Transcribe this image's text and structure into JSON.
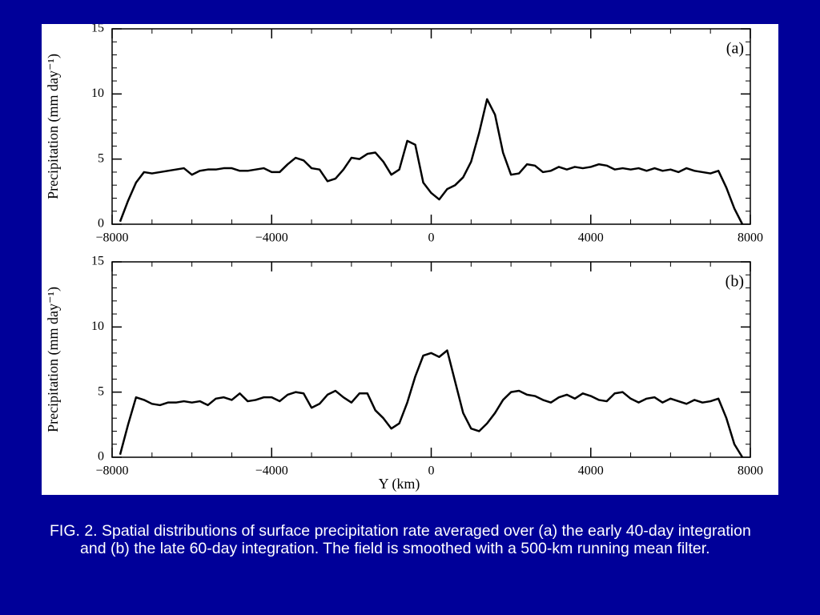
{
  "chart_data": [
    {
      "type": "line",
      "annotation": "(a)",
      "ylabel": "Precipitation (mm day⁻¹)",
      "x": [
        -7800,
        -7600,
        -7400,
        -7200,
        -7000,
        -6800,
        -6600,
        -6400,
        -6200,
        -6000,
        -5800,
        -5600,
        -5400,
        -5200,
        -5000,
        -4800,
        -4600,
        -4400,
        -4200,
        -4000,
        -3800,
        -3600,
        -3400,
        -3200,
        -3000,
        -2800,
        -2600,
        -2400,
        -2200,
        -2000,
        -1800,
        -1600,
        -1400,
        -1200,
        -1000,
        -800,
        -600,
        -400,
        -200,
        0,
        200,
        400,
        600,
        800,
        1000,
        1200,
        1400,
        1600,
        1800,
        2000,
        2200,
        2400,
        2600,
        2800,
        3000,
        3200,
        3400,
        3600,
        3800,
        4000,
        4200,
        4400,
        4600,
        4800,
        5000,
        5200,
        5400,
        5600,
        5800,
        6000,
        6200,
        6400,
        6600,
        6800,
        7000,
        7200,
        7400,
        7600,
        7800
      ],
      "values": [
        0.2,
        1.8,
        3.2,
        4.0,
        3.9,
        4.0,
        4.1,
        4.2,
        4.3,
        3.8,
        4.1,
        4.2,
        4.2,
        4.3,
        4.3,
        4.1,
        4.1,
        4.2,
        4.3,
        4.0,
        4.0,
        4.6,
        5.1,
        4.9,
        4.3,
        4.2,
        3.3,
        3.5,
        4.2,
        5.1,
        5.0,
        5.4,
        5.5,
        4.8,
        3.8,
        4.2,
        6.4,
        6.1,
        3.2,
        2.4,
        1.9,
        2.7,
        3.0,
        3.6,
        4.8,
        7.0,
        9.6,
        8.4,
        5.5,
        3.8,
        3.9,
        4.6,
        4.5,
        4.0,
        4.1,
        4.4,
        4.2,
        4.4,
        4.3,
        4.4,
        4.6,
        4.5,
        4.2,
        4.3,
        4.2,
        4.3,
        4.1,
        4.3,
        4.1,
        4.2,
        4.0,
        4.3,
        4.1,
        4.0,
        3.9,
        4.1,
        2.8,
        1.2,
        0.0
      ],
      "color": "#000000",
      "xlim": [
        -8000,
        8000
      ],
      "xticks": [
        {
          "value": -8000,
          "label": "−8000"
        },
        {
          "value": -4000,
          "label": "−4000"
        },
        0,
        4000,
        8000
      ],
      "ylim": [
        0,
        15
      ],
      "yticks": [
        0,
        5,
        10,
        15
      ]
    },
    {
      "type": "line",
      "annotation": "(b)",
      "ylabel": "Precipitation (mm day⁻¹)",
      "xlabel": "Y (km)",
      "x": [
        -7800,
        -7600,
        -7400,
        -7200,
        -7000,
        -6800,
        -6600,
        -6400,
        -6200,
        -6000,
        -5800,
        -5600,
        -5400,
        -5200,
        -5000,
        -4800,
        -4600,
        -4400,
        -4200,
        -4000,
        -3800,
        -3600,
        -3400,
        -3200,
        -3000,
        -2800,
        -2600,
        -2400,
        -2200,
        -2000,
        -1800,
        -1600,
        -1400,
        -1200,
        -1000,
        -800,
        -600,
        -400,
        -200,
        0,
        200,
        400,
        600,
        800,
        1000,
        1200,
        1400,
        1600,
        1800,
        2000,
        2200,
        2400,
        2600,
        2800,
        3000,
        3200,
        3400,
        3600,
        3800,
        4000,
        4200,
        4400,
        4600,
        4800,
        5000,
        5200,
        5400,
        5600,
        5800,
        6000,
        6200,
        6400,
        6600,
        6800,
        7000,
        7200,
        7400,
        7600,
        7800
      ],
      "values": [
        0.2,
        2.5,
        4.6,
        4.4,
        4.1,
        4.0,
        4.2,
        4.2,
        4.3,
        4.2,
        4.3,
        4.0,
        4.5,
        4.6,
        4.4,
        4.9,
        4.3,
        4.4,
        4.6,
        4.6,
        4.3,
        4.8,
        5.0,
        4.9,
        3.8,
        4.1,
        4.8,
        5.1,
        4.6,
        4.2,
        4.9,
        4.9,
        3.6,
        3.0,
        2.2,
        2.6,
        4.2,
        6.2,
        7.8,
        8.0,
        7.7,
        8.2,
        5.8,
        3.4,
        2.2,
        2.0,
        2.6,
        3.4,
        4.4,
        5.0,
        5.1,
        4.8,
        4.7,
        4.4,
        4.2,
        4.6,
        4.8,
        4.5,
        4.9,
        4.7,
        4.4,
        4.3,
        4.9,
        5.0,
        4.5,
        4.2,
        4.5,
        4.6,
        4.2,
        4.5,
        4.3,
        4.1,
        4.4,
        4.2,
        4.3,
        4.5,
        3.0,
        1.0,
        0.0
      ],
      "color": "#000000",
      "xlim": [
        -8000,
        8000
      ],
      "xticks": [
        {
          "value": -8000,
          "label": "−8000"
        },
        {
          "value": -4000,
          "label": "−4000"
        },
        0,
        4000,
        8000
      ],
      "ylim": [
        0,
        15
      ],
      "yticks": [
        0,
        5,
        10,
        15
      ]
    }
  ],
  "caption": "FIG. 2. Spatial distributions of surface precipitation rate averaged over (a) the early 40-day integration and (b) the late 60-day integration. The field is smoothed with a 500-km running mean filter."
}
